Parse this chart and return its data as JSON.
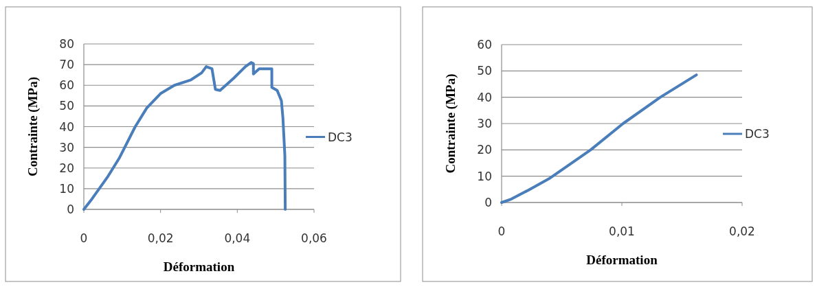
{
  "chart_data": [
    {
      "type": "line",
      "xlabel": "Déformation",
      "ylabel": "Contrainte (MPa)",
      "xlim": [
        0,
        0.06
      ],
      "xticks": [
        0,
        {
          "value": 0.02,
          "label": "0,02"
        },
        {
          "value": 0.04,
          "label": "0,04"
        },
        {
          "value": 0.06,
          "label": "0,06"
        }
      ],
      "ylim": [
        0,
        80
      ],
      "yticks": [
        0,
        10,
        20,
        30,
        40,
        50,
        60,
        70,
        80
      ],
      "grid": "y",
      "legend": "right",
      "marker": "none",
      "line_style": "solid",
      "series": [
        {
          "name": "DC3",
          "color": "#4a7ebb",
          "x": [
            0,
            0.0021,
            0.0063,
            0.0093,
            0.0134,
            0.0164,
            0.02,
            0.0236,
            0.0278,
            0.0307,
            0.0319,
            0.0334,
            0.0343,
            0.0355,
            0.0391,
            0.0421,
            0.0436,
            0.0442,
            0.0442,
            0.0457,
            0.049,
            0.049,
            0.0504,
            0.0515,
            0.0519,
            0.0524,
            0.0525
          ],
          "values": [
            0,
            5,
            16,
            25,
            40,
            49,
            56,
            60,
            62.5,
            66,
            69,
            68,
            58,
            57.5,
            63.5,
            69,
            71,
            70.5,
            65.5,
            68,
            68,
            59,
            57.5,
            52.5,
            44,
            26,
            0
          ]
        }
      ]
    },
    {
      "type": "line",
      "xlabel": "Déformation",
      "ylabel": "Contrainte (MPa)",
      "xlim": [
        0,
        0.02
      ],
      "xticks": [
        0,
        {
          "value": 0.01,
          "label": "0,01"
        },
        {
          "value": 0.02,
          "label": "0,02"
        }
      ],
      "ylim": [
        0,
        60
      ],
      "yticks": [
        0,
        10,
        20,
        30,
        40,
        50,
        60
      ],
      "grid": "y",
      "legend": "right",
      "marker": "none",
      "line_style": "solid",
      "series": [
        {
          "name": "DC3",
          "color": "#4a7ebb",
          "x": [
            0,
            0.0008,
            0.0021,
            0.004,
            0.0074,
            0.0101,
            0.0132,
            0.0162
          ],
          "values": [
            0,
            1.3,
            4.4,
            9.2,
            20,
            30,
            40,
            48.5
          ]
        }
      ]
    }
  ]
}
